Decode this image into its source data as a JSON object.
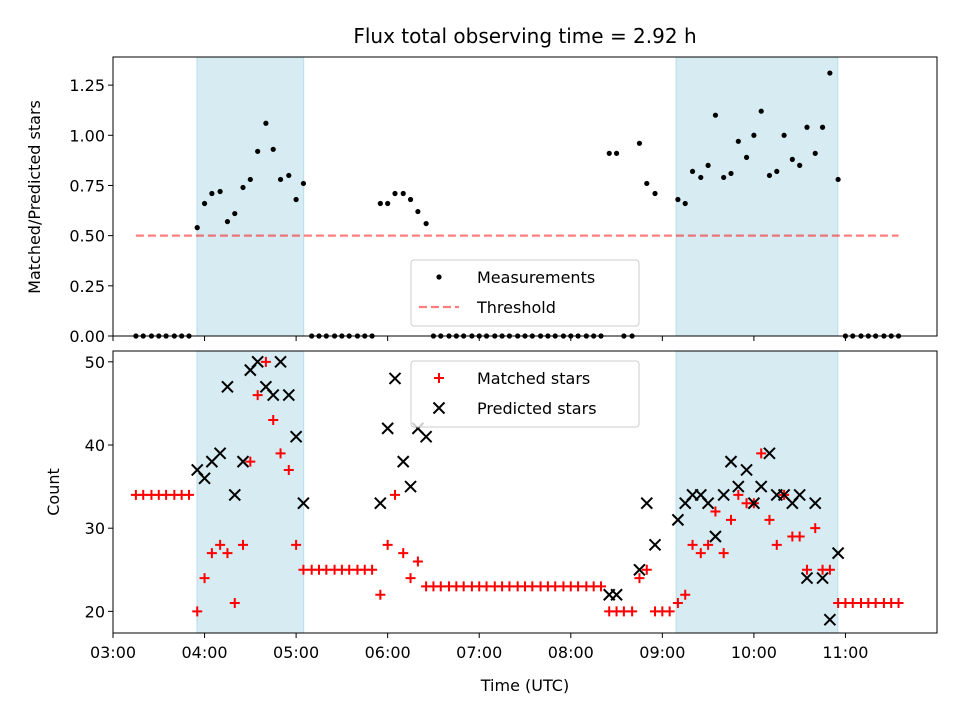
{
  "chart_data": [
    {
      "type": "scatter",
      "title": "Flux total observing time = 2.92 h",
      "xlabel": "",
      "ylabel": "Matched/Predicted stars",
      "ylim": [
        0,
        1.39
      ],
      "yticks": [
        "0.00",
        "0.25",
        "0.50",
        "0.75",
        "1.00",
        "1.25"
      ],
      "xlim_hours": [
        3.0,
        12.0
      ],
      "shaded_windows_hours": [
        [
          3.917,
          5.083
        ],
        [
          9.15,
          10.917
        ]
      ],
      "shade_color": "#add8e6",
      "series": [
        {
          "name": "Measurements",
          "marker": "dot",
          "color": "#000000",
          "x_hours": [
            3.25,
            3.33,
            3.42,
            3.5,
            3.58,
            3.67,
            3.75,
            3.83,
            3.92,
            4.0,
            4.08,
            4.17,
            4.25,
            4.33,
            4.42,
            4.5,
            4.58,
            4.67,
            4.75,
            4.83,
            4.92,
            5.0,
            5.08,
            5.17,
            5.25,
            5.33,
            5.42,
            5.5,
            5.58,
            5.67,
            5.75,
            5.83,
            5.92,
            6.0,
            6.08,
            6.17,
            6.25,
            6.33,
            6.42,
            6.5,
            6.58,
            6.67,
            6.75,
            6.83,
            6.92,
            7.0,
            7.08,
            7.17,
            7.25,
            7.33,
            7.42,
            7.5,
            7.58,
            7.67,
            7.75,
            7.83,
            7.92,
            8.0,
            8.08,
            8.17,
            8.25,
            8.33,
            8.42,
            8.5,
            8.58,
            8.67,
            8.75,
            8.83,
            8.92,
            9.17,
            9.25,
            9.33,
            9.42,
            9.5,
            9.58,
            9.67,
            9.75,
            9.83,
            9.92,
            10.0,
            10.08,
            10.17,
            10.25,
            10.33,
            10.42,
            10.5,
            10.58,
            10.67,
            10.75,
            10.83,
            10.92,
            11.0,
            11.08,
            11.17,
            11.25,
            11.33,
            11.42,
            11.5,
            11.58
          ],
          "y": [
            0,
            0,
            0,
            0,
            0,
            0,
            0,
            0,
            0.54,
            0.66,
            0.71,
            0.72,
            0.57,
            0.61,
            0.74,
            0.78,
            0.92,
            1.06,
            0.93,
            0.78,
            0.8,
            0.68,
            0.76,
            0,
            0,
            0,
            0,
            0,
            0,
            0,
            0,
            0,
            0.66,
            0.66,
            0.71,
            0.71,
            0.68,
            0.62,
            0.56,
            0,
            0,
            0,
            0,
            0,
            0,
            0,
            0,
            0,
            0,
            0,
            0,
            0,
            0,
            0,
            0,
            0,
            0,
            0,
            0,
            0,
            0,
            0,
            0.91,
            0.91,
            0,
            0,
            0.96,
            0.76,
            0.71,
            0.68,
            0.66,
            0.82,
            0.79,
            0.85,
            1.1,
            0.79,
            0.81,
            0.97,
            0.89,
            1.0,
            1.12,
            0.8,
            0.82,
            1.0,
            0.88,
            0.85,
            1.04,
            0.91,
            1.04,
            1.31,
            0.78,
            0,
            0,
            0,
            0,
            0,
            0,
            0,
            0
          ]
        },
        {
          "name": "Threshold",
          "style": "dashed",
          "color": "#ff0000",
          "x_hours": [
            3.25,
            11.58
          ],
          "y": [
            0.5,
            0.5
          ]
        }
      ],
      "legend": [
        "Measurements",
        "Threshold"
      ],
      "legend_loc": "lower center"
    },
    {
      "type": "scatter",
      "title": "",
      "xlabel": "Time (UTC)",
      "ylabel": "Count",
      "ylim": [
        17.4,
        51.3
      ],
      "yticks": [
        "20",
        "30",
        "40",
        "50"
      ],
      "xlim_hours": [
        3.0,
        12.0
      ],
      "xticks": [
        "03:00",
        "04:00",
        "05:00",
        "06:00",
        "07:00",
        "08:00",
        "09:00",
        "10:00",
        "11:00"
      ],
      "shaded_windows_hours": [
        [
          3.917,
          5.083
        ],
        [
          9.15,
          10.917
        ]
      ],
      "shade_color": "#add8e6",
      "series": [
        {
          "name": "Matched stars",
          "marker": "plus",
          "color": "#ff0000",
          "x_hours": [
            3.25,
            3.33,
            3.42,
            3.5,
            3.58,
            3.67,
            3.75,
            3.83,
            3.92,
            4.0,
            4.08,
            4.17,
            4.25,
            4.33,
            4.42,
            4.5,
            4.58,
            4.67,
            4.75,
            4.83,
            4.92,
            5.0,
            5.08,
            5.17,
            5.25,
            5.33,
            5.42,
            5.5,
            5.58,
            5.67,
            5.75,
            5.83,
            5.92,
            6.0,
            6.08,
            6.17,
            6.25,
            6.33,
            6.42,
            6.5,
            6.58,
            6.67,
            6.75,
            6.83,
            6.92,
            7.0,
            7.08,
            7.17,
            7.25,
            7.33,
            7.42,
            7.5,
            7.58,
            7.67,
            7.75,
            7.83,
            7.92,
            8.0,
            8.08,
            8.17,
            8.25,
            8.33,
            8.42,
            8.5,
            8.58,
            8.67,
            8.75,
            8.83,
            8.92,
            9.0,
            9.08,
            9.17,
            9.25,
            9.33,
            9.42,
            9.5,
            9.58,
            9.67,
            9.75,
            9.83,
            9.92,
            10.0,
            10.08,
            10.17,
            10.25,
            10.33,
            10.42,
            10.5,
            10.58,
            10.67,
            10.75,
            10.83,
            10.92,
            11.0,
            11.08,
            11.17,
            11.25,
            11.33,
            11.42,
            11.5,
            11.58
          ],
          "y": [
            34,
            34,
            34,
            34,
            34,
            34,
            34,
            34,
            20,
            24,
            27,
            28,
            27,
            21,
            28,
            38,
            46,
            50,
            43,
            39,
            37,
            28,
            25,
            25,
            25,
            25,
            25,
            25,
            25,
            25,
            25,
            25,
            22,
            28,
            34,
            27,
            24,
            26,
            23,
            23,
            23,
            23,
            23,
            23,
            23,
            23,
            23,
            23,
            23,
            23,
            23,
            23,
            23,
            23,
            23,
            23,
            23,
            23,
            23,
            23,
            23,
            23,
            20,
            20,
            20,
            20,
            24,
            25,
            20,
            20,
            20,
            21,
            22,
            28,
            27,
            28,
            32,
            27,
            31,
            34,
            33,
            33,
            39,
            31,
            28,
            34,
            29,
            29,
            25,
            30,
            25,
            25,
            21,
            21,
            21,
            21,
            21,
            21,
            21,
            21,
            21
          ]
        },
        {
          "name": "Predicted stars",
          "marker": "x",
          "color": "#000000",
          "x_hours": [
            3.92,
            4.0,
            4.08,
            4.17,
            4.25,
            4.33,
            4.42,
            4.5,
            4.58,
            4.67,
            4.75,
            4.83,
            4.92,
            5.0,
            5.08,
            5.92,
            6.0,
            6.08,
            6.17,
            6.25,
            6.33,
            6.42,
            8.42,
            8.5,
            8.75,
            8.83,
            8.92,
            9.17,
            9.25,
            9.33,
            9.42,
            9.5,
            9.58,
            9.67,
            9.75,
            9.83,
            9.92,
            10.0,
            10.08,
            10.17,
            10.25,
            10.33,
            10.42,
            10.5,
            10.58,
            10.67,
            10.75,
            10.83,
            10.92
          ],
          "y": [
            37,
            36,
            38,
            39,
            47,
            34,
            38,
            49,
            50,
            47,
            46,
            50,
            46,
            41,
            33,
            33,
            42,
            48,
            38,
            35,
            42,
            41,
            22,
            22,
            25,
            33,
            28,
            31,
            33,
            34,
            34,
            33,
            29,
            34,
            38,
            35,
            37,
            33,
            35,
            39,
            34,
            34,
            33,
            34,
            24,
            33,
            24,
            19,
            27
          ]
        }
      ],
      "legend": [
        "Matched stars",
        "Predicted stars"
      ],
      "legend_loc": "upper center"
    }
  ]
}
